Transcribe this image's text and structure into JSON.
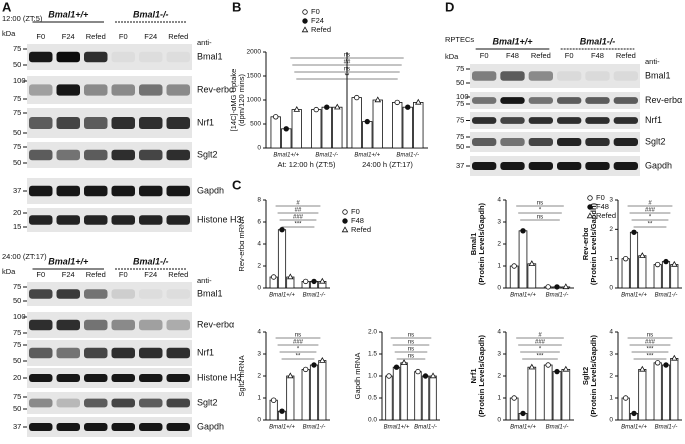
{
  "panel_labels": [
    "A",
    "B",
    "C",
    "D"
  ],
  "blots": [
    {
      "time": "12:00 (ZT:5)",
      "kda": "kDa",
      "genotypes": [
        "Bmal1+/+",
        "Bmal1-/-"
      ],
      "lanes": [
        "F0",
        "F24",
        "Refed",
        "F0",
        "F24",
        "Refed"
      ],
      "anti": "anti-",
      "rows": [
        {
          "name": "Bmal1",
          "markers": [
            "75",
            "50"
          ]
        },
        {
          "name": "Rev-erbα",
          "markers": [
            "100",
            "75"
          ]
        },
        {
          "name": "Nrf1",
          "markers": [
            "75",
            "50"
          ]
        },
        {
          "name": "Sglt2",
          "markers": [
            "75",
            "50"
          ]
        },
        {
          "name": "Gapdh",
          "markers": [
            "37"
          ]
        },
        {
          "name": "Histone H3",
          "markers": [
            "20",
            "15"
          ]
        }
      ]
    },
    {
      "time": "24:00 (ZT:17)",
      "kda": "kDa",
      "genotypes": [
        "Bmal1+/+",
        "Bmal1-/-"
      ],
      "lanes": [
        "F0",
        "F24",
        "Refed",
        "F0",
        "F24",
        "Refed"
      ],
      "anti": "anti-",
      "rows": [
        {
          "name": "Bmal1",
          "markers": [
            "75",
            "50"
          ]
        },
        {
          "name": "Rev-erbα",
          "markers": [
            "100",
            "75"
          ]
        },
        {
          "name": "Nrf1",
          "markers": [
            "75",
            "50"
          ]
        },
        {
          "name": "Histone H3",
          "markers": [
            "20"
          ]
        },
        {
          "name": "Sglt2",
          "markers": [
            "75",
            "50"
          ]
        },
        {
          "name": "Gapdh",
          "markers": [
            "37"
          ]
        }
      ]
    },
    {
      "time": "RPTECs",
      "kda": "kDa",
      "genotypes": [
        "Bmal1+/+",
        "Bmal1-/-"
      ],
      "lanes": [
        "F0",
        "F48",
        "Refed",
        "F0",
        "F48",
        "Refed"
      ],
      "anti": "anti-",
      "rows": [
        {
          "name": "Bmal1",
          "markers": [
            "75",
            "50"
          ]
        },
        {
          "name": "Rev-erbα",
          "markers": [
            "100",
            "75"
          ]
        },
        {
          "name": "Nrf1",
          "markers": [
            "75"
          ]
        },
        {
          "name": "Sglt2",
          "markers": [
            "75",
            "50"
          ]
        },
        {
          "name": "Gapdh",
          "markers": [
            "37"
          ]
        }
      ]
    }
  ],
  "chart_data": [
    {
      "type": "bar",
      "ylabel": [
        "[14C]-αMG Uptake",
        "(dpm/120 mins)"
      ],
      "ylim": [
        0,
        2000
      ],
      "yticks": [
        0,
        500,
        1000,
        1500,
        2000
      ],
      "categories": [
        "Bmal1+/+",
        "Bmal1-/-",
        "Bmal1+/+",
        "Bmal1-/-"
      ],
      "group_labels": [
        "At: 12:00 h (ZT:5)",
        "24:00 h (ZT:17)"
      ],
      "legend": true,
      "series": [
        {
          "name": "F0",
          "marker": "circle-open",
          "values": [
            650,
            800,
            1050,
            950
          ]
        },
        {
          "name": "F24",
          "marker": "circle-filled",
          "values": [
            400,
            850,
            550,
            850
          ]
        },
        {
          "name": "Refed",
          "marker": "triangle-open",
          "values": [
            800,
            850,
            1000,
            950
          ]
        }
      ],
      "annotations": [
        "ns",
        "##",
        "ns",
        "**"
      ]
    },
    {
      "type": "bar",
      "ylabel": [
        "Rev-erbα mRNA"
      ],
      "ylim": [
        0,
        8
      ],
      "yticks": [
        0,
        2,
        4,
        6,
        8
      ],
      "categories": [
        "Bmal1+/+",
        "Bmal1-/-"
      ],
      "legend": true,
      "series": [
        {
          "name": "F0",
          "marker": "circle-open",
          "values": [
            1.0,
            0.6
          ]
        },
        {
          "name": "F48",
          "marker": "circle-filled",
          "values": [
            5.3,
            0.6
          ]
        },
        {
          "name": "Refed",
          "marker": "triangle-open",
          "values": [
            1.0,
            0.6
          ]
        }
      ],
      "annotations": [
        "#",
        "##",
        "###",
        "***"
      ]
    },
    {
      "type": "bar",
      "ylabel": [
        "Sglt2 mRNA"
      ],
      "ylim": [
        0,
        4
      ],
      "yticks": [
        0,
        1,
        2,
        3,
        4
      ],
      "categories": [
        "Bmal1+/+",
        "Bmal1-/-"
      ],
      "legend": false,
      "series": [
        {
          "name": "F0",
          "marker": "circle-open",
          "values": [
            0.9,
            2.3
          ]
        },
        {
          "name": "F48",
          "marker": "circle-filled",
          "values": [
            0.4,
            2.5
          ]
        },
        {
          "name": "Refed",
          "marker": "triangle-open",
          "values": [
            2.0,
            2.7
          ]
        }
      ],
      "annotations": [
        "ns",
        "###",
        "*",
        "**"
      ]
    },
    {
      "type": "bar",
      "ylabel": [
        "Gapdh mRNA"
      ],
      "ylim": [
        0,
        2
      ],
      "yticks": [
        {
          "value": 0,
          "label": "0.0"
        },
        {
          "value": 0.5,
          "label": "0.5"
        },
        {
          "value": 1,
          "label": "1.0"
        },
        {
          "value": 1.5,
          "label": "1.5"
        },
        {
          "value": 2,
          "label": "2.0"
        }
      ],
      "categories": [
        "Bmal1+/+",
        "Bmal1-/-"
      ],
      "legend": false,
      "series": [
        {
          "name": "F0",
          "marker": "circle-open",
          "values": [
            1.0,
            1.1
          ]
        },
        {
          "name": "F48",
          "marker": "circle-filled",
          "values": [
            1.2,
            1.0
          ]
        },
        {
          "name": "Refed",
          "marker": "triangle-open",
          "values": [
            1.3,
            1.0
          ]
        }
      ],
      "annotations": [
        "ns",
        "ns",
        "ns",
        "ns"
      ]
    },
    {
      "type": "bar",
      "ylabel": [
        "Bmal1",
        "(Protein Levels/Gapdh)"
      ],
      "ylabel_color": "#2e9a2e",
      "ylim": [
        0,
        4
      ],
      "yticks": [
        0,
        1,
        2,
        3,
        4
      ],
      "categories": [
        "Bmal1+/+",
        "Bmal1-/-"
      ],
      "legend": true,
      "series": [
        {
          "name": "F0",
          "marker": "circle-open",
          "values": [
            1.0,
            0.05
          ]
        },
        {
          "name": "F48",
          "marker": "circle-filled",
          "values": [
            2.6,
            0.05
          ]
        },
        {
          "name": "Refed",
          "marker": "triangle-open",
          "values": [
            1.1,
            0.05
          ]
        }
      ],
      "annotations": [
        "ns",
        "*",
        "ns"
      ]
    },
    {
      "type": "bar",
      "ylabel": [
        "Rev-erbα",
        "(Protein Levels/Gapdh)"
      ],
      "ylabel_color": "#2e9a2e",
      "ylim": [
        0,
        3
      ],
      "yticks": [
        0,
        1,
        2,
        3
      ],
      "categories": [
        "Bmal1+/+",
        "Bmal1-/-"
      ],
      "legend": false,
      "series": [
        {
          "name": "F0",
          "marker": "circle-open",
          "values": [
            1.0,
            0.8
          ]
        },
        {
          "name": "F48",
          "marker": "circle-filled",
          "values": [
            1.9,
            0.9
          ]
        },
        {
          "name": "Refed",
          "marker": "triangle-open",
          "values": [
            1.1,
            0.8
          ]
        }
      ],
      "annotations": [
        "#",
        "###",
        "*",
        "**"
      ]
    },
    {
      "type": "bar",
      "ylabel": [
        "Nrf1",
        "(Protein Levels/Gapdh)"
      ],
      "ylabel_color": "#2e9a2e",
      "ylim": [
        0,
        4
      ],
      "yticks": [
        0,
        1,
        2,
        3,
        4
      ],
      "categories": [
        "Bmal1+/+",
        "Bmal1-/-"
      ],
      "legend": false,
      "series": [
        {
          "name": "F0",
          "marker": "circle-open",
          "values": [
            1.0,
            2.5
          ]
        },
        {
          "name": "F48",
          "marker": "circle-filled",
          "values": [
            0.3,
            2.2
          ]
        },
        {
          "name": "Refed",
          "marker": "triangle-open",
          "values": [
            2.4,
            2.3
          ]
        }
      ],
      "annotations": [
        "#",
        "###",
        "*",
        "***"
      ]
    },
    {
      "type": "bar",
      "ylabel": [
        "Sglt2",
        "(Protein Levels/Gapdh)"
      ],
      "ylabel_color": "#2e9a2e",
      "ylim": [
        0,
        4
      ],
      "yticks": [
        0,
        1,
        2,
        3,
        4
      ],
      "categories": [
        "Bmal1+/+",
        "Bmal1-/-"
      ],
      "legend": false,
      "series": [
        {
          "name": "F0",
          "marker": "circle-open",
          "values": [
            1.0,
            2.6
          ]
        },
        {
          "name": "F48",
          "marker": "circle-filled",
          "values": [
            0.3,
            2.5
          ]
        },
        {
          "name": "Refed",
          "marker": "triangle-open",
          "values": [
            2.3,
            2.8
          ]
        }
      ],
      "annotations": [
        "ns",
        "###",
        "***",
        "***"
      ]
    }
  ]
}
